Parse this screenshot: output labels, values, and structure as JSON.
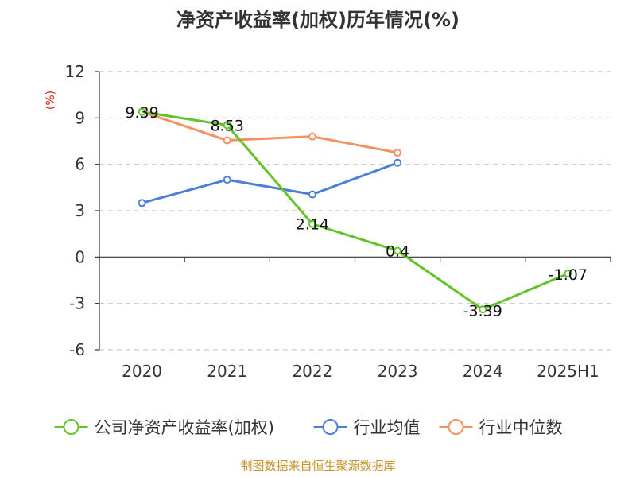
{
  "chart_data": {
    "type": "line",
    "title": "净资产收益率(加权)历年情况(%)",
    "ylabel": "(%)",
    "categories": [
      "2020",
      "2021",
      "2022",
      "2023",
      "2024",
      "2025H1"
    ],
    "ylim": [
      -6,
      12
    ],
    "yticks": [
      12,
      9,
      6,
      3,
      0,
      -3,
      -6
    ],
    "grid": true,
    "legend_position": "bottom",
    "series": [
      {
        "name": "公司净资产收益率(加权)",
        "color": "#64c32a",
        "values": [
          9.39,
          8.53,
          2.14,
          0.4,
          -3.39,
          -1.07
        ],
        "data_labels": [
          "9.39",
          "8.53",
          "2.14",
          "0.4",
          "-3.39",
          "-1.07"
        ]
      },
      {
        "name": "行业均值",
        "color": "#4d7fd8",
        "values": [
          3.5,
          5.0,
          4.05,
          6.1,
          null,
          null
        ],
        "data_labels": []
      },
      {
        "name": "行业中位数",
        "color": "#f59161",
        "values": [
          9.4,
          7.55,
          7.8,
          6.75,
          null,
          null
        ],
        "data_labels": []
      }
    ]
  },
  "source_note": "制图数据来自恒生聚源数据库"
}
